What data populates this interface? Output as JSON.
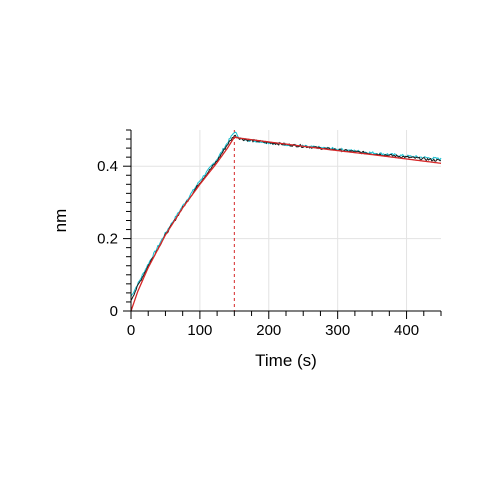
{
  "chart_data": {
    "type": "line",
    "title": "",
    "xlabel": "Time (s)",
    "ylabel": "nm",
    "xlim": [
      0,
      450
    ],
    "ylim": [
      0,
      0.5
    ],
    "x_ticks": [
      0,
      100,
      200,
      300,
      400
    ],
    "x_tick_labels": [
      "0",
      "100",
      "200",
      "300",
      "400"
    ],
    "y_ticks": [
      0,
      0.2,
      0.4
    ],
    "y_tick_labels": [
      "0",
      "0.2",
      "0.4"
    ],
    "grid": true,
    "legend": "none",
    "markers": [
      {
        "x": 0,
        "color": "#d62728"
      },
      {
        "x": 150,
        "color": "#d62728"
      }
    ],
    "series": [
      {
        "color": "#17becf",
        "style": "noisy",
        "x": [
          0,
          10,
          25,
          50,
          75,
          100,
          125,
          140,
          150,
          160,
          200,
          250,
          300,
          350,
          400,
          450
        ],
        "y": [
          0.04,
          0.075,
          0.13,
          0.215,
          0.29,
          0.36,
          0.42,
          0.465,
          0.495,
          0.475,
          0.465,
          0.455,
          0.447,
          0.437,
          0.428,
          0.42
        ]
      },
      {
        "color": "#1a1a1a",
        "style": "noisy",
        "x": [
          0,
          10,
          25,
          50,
          75,
          100,
          125,
          140,
          150,
          160,
          200,
          250,
          300,
          350,
          400,
          450
        ],
        "y": [
          0.03,
          0.07,
          0.125,
          0.21,
          0.285,
          0.355,
          0.415,
          0.46,
          0.485,
          0.475,
          0.465,
          0.455,
          0.445,
          0.435,
          0.425,
          0.415
        ]
      },
      {
        "color": "#d62728",
        "style": "fit",
        "x": [
          0,
          10,
          25,
          50,
          75,
          100,
          125,
          140,
          150,
          160,
          200,
          250,
          300,
          350,
          400,
          450
        ],
        "y": [
          0.0,
          0.055,
          0.12,
          0.21,
          0.285,
          0.35,
          0.41,
          0.45,
          0.48,
          0.477,
          0.467,
          0.455,
          0.443,
          0.432,
          0.42,
          0.408
        ]
      }
    ]
  }
}
